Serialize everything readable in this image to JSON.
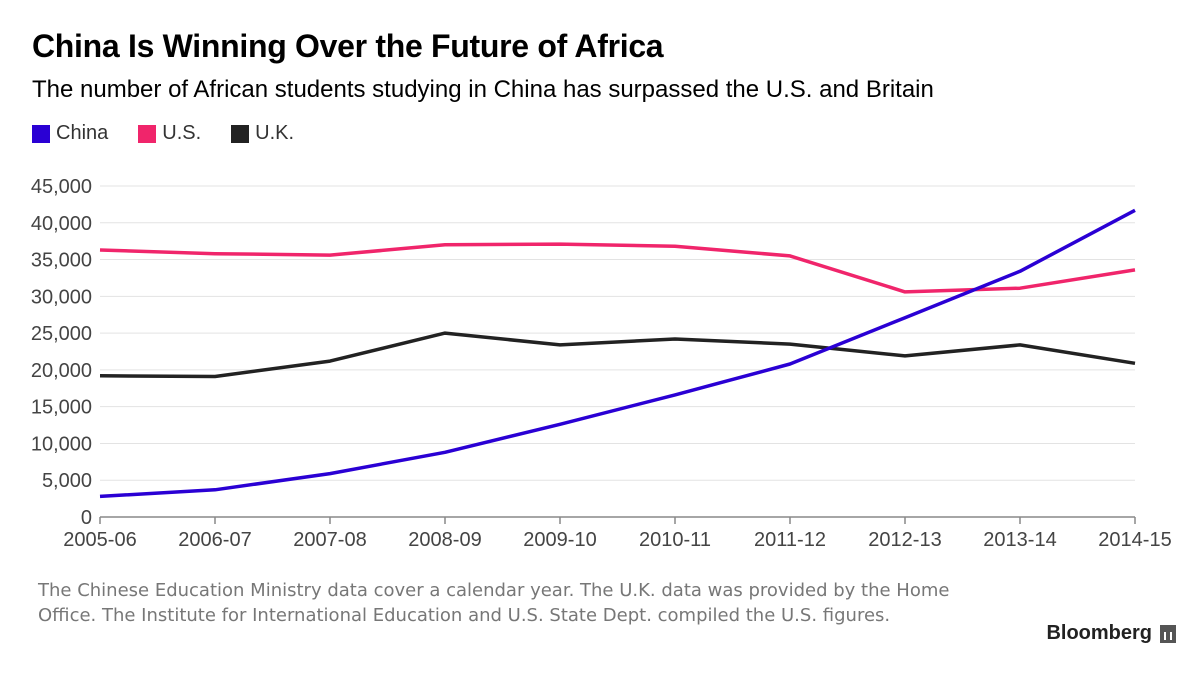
{
  "header": {
    "title": "China Is Winning Over the Future of Africa",
    "subtitle": "The number of African students studying in China has surpassed the U.S. and Britain"
  },
  "footnote": "The Chinese Education Ministry data cover a calendar year. The U.K. data was provided by the Home Office. The Institute for International Education and U.S. State Dept. compiled the U.S. figures.",
  "brand": {
    "name": "Bloomberg",
    "icon": "bloomberg-terminal-icon"
  },
  "chart_data": {
    "type": "line",
    "title": "China Is Winning Over the Future of Africa",
    "subtitle": "The number of African students studying in China has surpassed the U.S. and Britain",
    "xlabel": "",
    "ylabel": "",
    "categories": [
      "2005-06",
      "2006-07",
      "2007-08",
      "2008-09",
      "2009-10",
      "2010-11",
      "2011-12",
      "2012-13",
      "2013-14",
      "2014-15"
    ],
    "y_ticks": [
      "45,000",
      "40,000",
      "35,000",
      "30,000",
      "25,000",
      "20,000",
      "15,000",
      "10,000",
      "5,000",
      "0"
    ],
    "ylim": [
      0,
      45000
    ],
    "grid": true,
    "legend_position": "top-left",
    "series": [
      {
        "name": "China",
        "color": "#2a00d4",
        "values": [
          2800,
          3700,
          5900,
          8800,
          12600,
          16600,
          20800,
          27100,
          33400,
          41700
        ]
      },
      {
        "name": "U.S.",
        "color": "#f0256b",
        "values": [
          36300,
          35800,
          35600,
          37000,
          37100,
          36800,
          35500,
          30600,
          31100,
          33600
        ]
      },
      {
        "name": "U.K.",
        "color": "#222222",
        "values": [
          19200,
          19100,
          21200,
          25000,
          23400,
          24200,
          23500,
          21900,
          23400,
          20900
        ]
      }
    ]
  }
}
